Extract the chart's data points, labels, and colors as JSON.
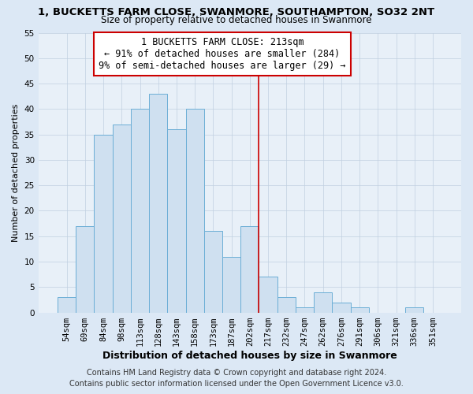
{
  "title": "1, BUCKETTS FARM CLOSE, SWANMORE, SOUTHAMPTON, SO32 2NT",
  "subtitle": "Size of property relative to detached houses in Swanmore",
  "xlabel": "Distribution of detached houses by size in Swanmore",
  "ylabel": "Number of detached properties",
  "bin_labels": [
    "54sqm",
    "69sqm",
    "84sqm",
    "98sqm",
    "113sqm",
    "128sqm",
    "143sqm",
    "158sqm",
    "173sqm",
    "187sqm",
    "202sqm",
    "217sqm",
    "232sqm",
    "247sqm",
    "262sqm",
    "276sqm",
    "291sqm",
    "306sqm",
    "321sqm",
    "336sqm",
    "351sqm"
  ],
  "bar_heights": [
    3,
    17,
    35,
    37,
    40,
    43,
    36,
    40,
    16,
    11,
    17,
    7,
    3,
    1,
    4,
    2,
    1,
    0,
    0,
    1,
    0
  ],
  "bar_color": "#cfe0f0",
  "bar_edgecolor": "#6baed6",
  "vline_x": 10.5,
  "vline_color": "#cc0000",
  "annotation_line1": "1 BUCKETTS FARM CLOSE: 213sqm",
  "annotation_line2": "← 91% of detached houses are smaller (284)",
  "annotation_line3": "9% of semi-detached houses are larger (29) →",
  "annotation_fontsize": 8.5,
  "ylim": [
    0,
    55
  ],
  "yticks": [
    0,
    5,
    10,
    15,
    20,
    25,
    30,
    35,
    40,
    45,
    50,
    55
  ],
  "footer_line1": "Contains HM Land Registry data © Crown copyright and database right 2024.",
  "footer_line2": "Contains public sector information licensed under the Open Government Licence v3.0.",
  "background_color": "#dce8f5",
  "plot_background_color": "#e8f0f8",
  "grid_color": "#c0cfe0",
  "title_fontsize": 9.5,
  "subtitle_fontsize": 8.5,
  "xlabel_fontsize": 9,
  "ylabel_fontsize": 8,
  "tick_fontsize": 7.5,
  "footer_fontsize": 7
}
